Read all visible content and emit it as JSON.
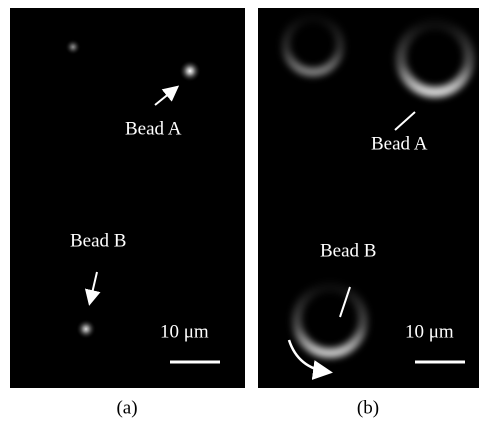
{
  "panels": [
    {
      "caption": "(a)",
      "bead_a": "Bead A",
      "bead_b": "Bead B",
      "scale_bar": "10 μm"
    },
    {
      "caption": "(b)",
      "bead_a": "Bead A",
      "bead_b": "Bead B",
      "scale_bar": "10 μm"
    }
  ]
}
